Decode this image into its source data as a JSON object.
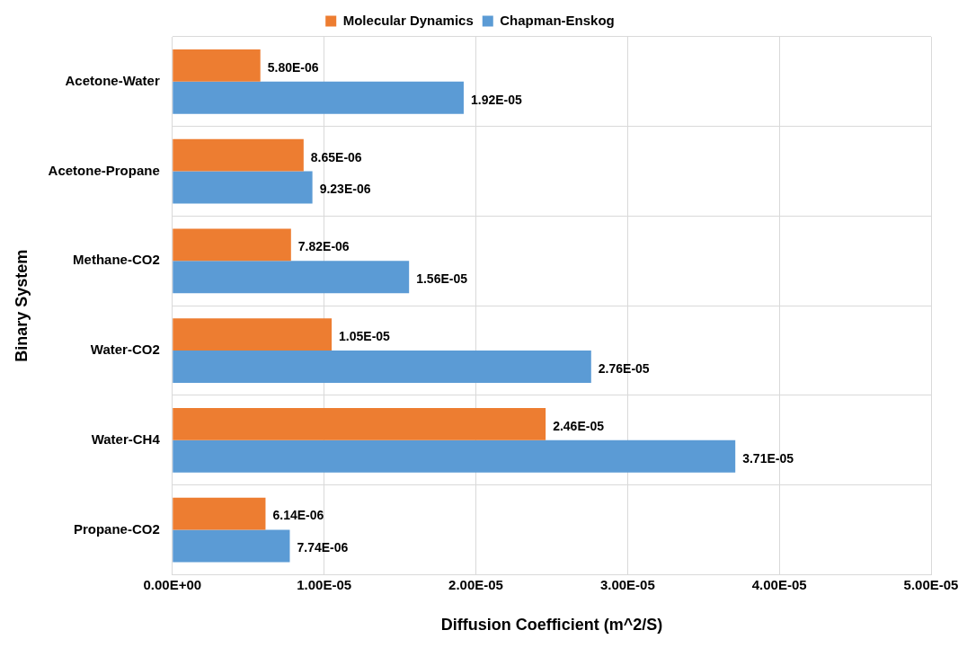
{
  "chart_data": {
    "type": "bar",
    "orientation": "horizontal",
    "xlabel": "Diffusion Coefficient (m^2/S)",
    "ylabel": "Binary System",
    "categories": [
      "Acetone-Water",
      "Acetone-Propane",
      "Methane-CO2",
      "Water-CO2",
      "Water-CH4",
      "Propane-CO2"
    ],
    "series": [
      {
        "name": "Molecular Dynamics",
        "color": "#ed7d31",
        "values": [
          5.8e-06,
          8.65e-06,
          7.82e-06,
          1.05e-05,
          2.46e-05,
          6.14e-06
        ],
        "value_labels": [
          "5.80E-06",
          "8.65E-06",
          "7.82E-06",
          "1.05E-05",
          "2.46E-05",
          "6.14E-06"
        ]
      },
      {
        "name": "Chapman-Enskog",
        "color": "#5b9bd5",
        "values": [
          1.92e-05,
          9.23e-06,
          1.56e-05,
          2.76e-05,
          3.71e-05,
          7.74e-06
        ],
        "value_labels": [
          "1.92E-05",
          "9.23E-06",
          "1.56E-05",
          "2.76E-05",
          "3.71E-05",
          "7.74E-06"
        ]
      }
    ],
    "xlim": [
      0,
      5e-05
    ],
    "xticks": [
      {
        "value": 0,
        "label": "0.00E+00"
      },
      {
        "value": 1e-05,
        "label": "1.00E-05"
      },
      {
        "value": 2e-05,
        "label": "2.00E-05"
      },
      {
        "value": 3e-05,
        "label": "3.00E-05"
      },
      {
        "value": 4e-05,
        "label": "4.00E-05"
      },
      {
        "value": 5e-05,
        "label": "5.00E-05"
      }
    ],
    "grid": true,
    "legend": "top"
  }
}
